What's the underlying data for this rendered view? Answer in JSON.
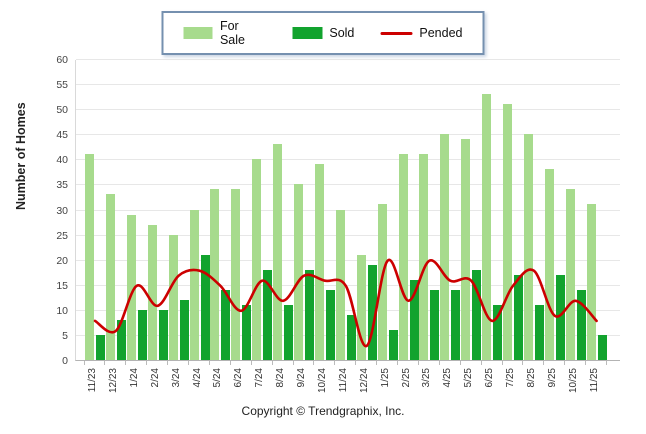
{
  "legend": {
    "items": [
      {
        "label": "For Sale",
        "color": "#a7db8d",
        "type": "swatch"
      },
      {
        "label": "Sold",
        "color": "#12a32e",
        "type": "swatch"
      },
      {
        "label": "Pended",
        "color": "#cc0000",
        "type": "line"
      }
    ]
  },
  "y_axis": {
    "title": "Number of Homes"
  },
  "footer": {
    "copyright": "Copyright © Trendgraphix, Inc."
  },
  "chart_data": {
    "type": "bar+line",
    "title": "",
    "xlabel": "",
    "ylabel": "Number of Homes",
    "ylim": [
      0,
      60
    ],
    "ytick_step": 5,
    "grid": true,
    "legend_position": "top-center",
    "categories": [
      "11/23",
      "12/23",
      "1/24",
      "2/24",
      "3/24",
      "4/24",
      "5/24",
      "6/24",
      "7/24",
      "8/24",
      "9/24",
      "10/24",
      "11/24",
      "12/24",
      "1/25",
      "2/25",
      "3/25",
      "4/25",
      "5/25",
      "6/25",
      "7/25",
      "8/25",
      "9/25",
      "10/25",
      "11/25"
    ],
    "series": [
      {
        "name": "For Sale",
        "type": "bar",
        "color": "#a7db8d",
        "values": [
          41,
          33,
          29,
          27,
          25,
          30,
          34,
          34,
          40,
          43,
          35,
          39,
          30,
          21,
          31,
          41,
          41,
          45,
          44,
          53,
          51,
          45,
          38,
          34,
          31
        ]
      },
      {
        "name": "Sold",
        "type": "bar",
        "color": "#12a32e",
        "values": [
          5,
          8,
          10,
          10,
          12,
          21,
          14,
          11,
          18,
          11,
          18,
          14,
          9,
          19,
          6,
          16,
          14,
          14,
          18,
          11,
          17,
          11,
          17,
          14,
          5
        ]
      },
      {
        "name": "Pended",
        "type": "line",
        "color": "#cc0000",
        "values": [
          8,
          6,
          15,
          11,
          17,
          18,
          15,
          10,
          16,
          12,
          17,
          16,
          15,
          3,
          20,
          12,
          20,
          16,
          16,
          8,
          15,
          18,
          9,
          12,
          8
        ]
      }
    ]
  }
}
